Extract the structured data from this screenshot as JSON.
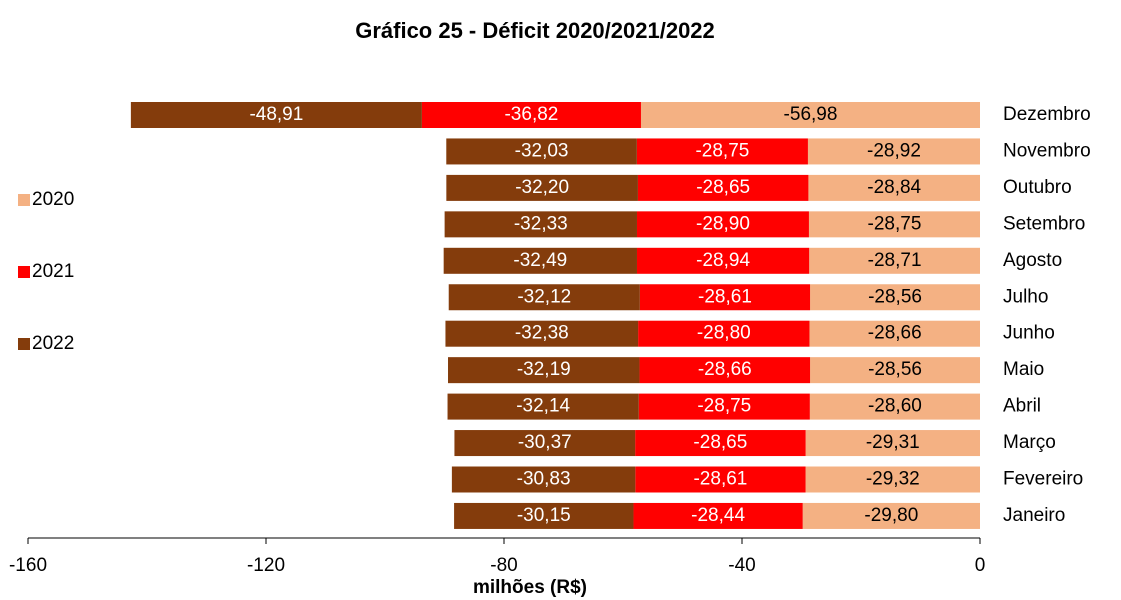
{
  "chart_data": {
    "type": "bar",
    "orientation": "horizontal",
    "stacked": true,
    "title": "Gráfico 25 - Déficit 2020/2021/2022",
    "xlabel": "milhões (R$)",
    "categories": [
      "Dezembro",
      "Novembro",
      "Outubro",
      "Setembro",
      "Agosto",
      "Julho",
      "Junho",
      "Maio",
      "Abril",
      "Março",
      "Fevereiro",
      "Janeiro"
    ],
    "series": [
      {
        "name": "2020",
        "color": "#F4B183",
        "label_color": "#000000",
        "values": [
          -56.98,
          -28.92,
          -28.84,
          -28.75,
          -28.71,
          -28.56,
          -28.66,
          -28.56,
          -28.6,
          -29.31,
          -29.32,
          -29.8
        ],
        "value_labels": [
          "-56,98",
          "-28,92",
          "-28,84",
          "-28,75",
          "-28,71",
          "-28,56",
          "-28,66",
          "-28,56",
          "-28,60",
          "-29,31",
          "-29,32",
          "-29,80"
        ]
      },
      {
        "name": "2021",
        "color": "#FF0000",
        "label_color": "#FFFFFF",
        "values": [
          -36.82,
          -28.75,
          -28.65,
          -28.9,
          -28.94,
          -28.61,
          -28.8,
          -28.66,
          -28.75,
          -28.65,
          -28.61,
          -28.44
        ],
        "value_labels": [
          "-36,82",
          "-28,75",
          "-28,65",
          "-28,90",
          "-28,94",
          "-28,61",
          "-28,80",
          "-28,66",
          "-28,75",
          "-28,65",
          "-28,61",
          "-28,44"
        ]
      },
      {
        "name": "2022",
        "color": "#843C0C",
        "label_color": "#FFFFFF",
        "values": [
          -48.91,
          -32.03,
          -32.2,
          -32.33,
          -32.49,
          -32.12,
          -32.38,
          -32.19,
          -32.14,
          -30.37,
          -30.83,
          -30.15
        ],
        "value_labels": [
          "-48,91",
          "-32,03",
          "-32,20",
          "-32,33",
          "-32,49",
          "-32,12",
          "-32,38",
          "-32,19",
          "-32,14",
          "-30,37",
          "-30,83",
          "-30,15"
        ]
      }
    ],
    "xlim": [
      -160,
      0
    ],
    "xticks": [
      -160,
      -120,
      -80,
      -40,
      0
    ],
    "legend": "left"
  }
}
